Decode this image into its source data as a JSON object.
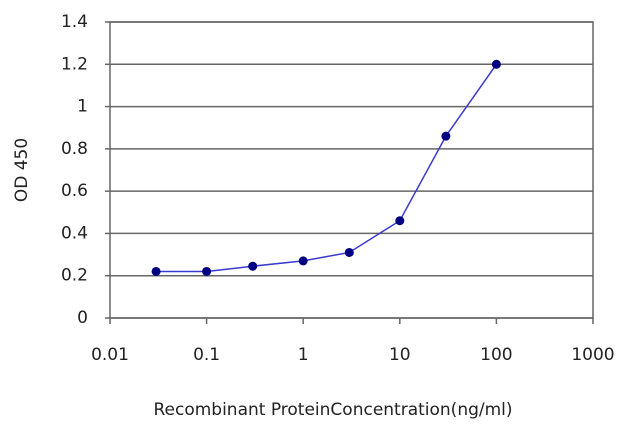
{
  "chart_data": {
    "type": "line",
    "x_label": "Recombinant ProteinConcentration(ng/ml)",
    "y_label": "OD 450",
    "x": [
      0.03,
      0.1,
      0.3,
      1,
      3,
      10,
      30,
      100
    ],
    "values": [
      0.22,
      0.22,
      0.245,
      0.27,
      0.31,
      0.46,
      0.86,
      1.2
    ],
    "line_color": "#3a3ad0",
    "marker_color": "#000080",
    "xscale": "log",
    "xlim": [
      0.01,
      1000
    ],
    "xticks": [
      0.01,
      0.1,
      1,
      10,
      100,
      1000
    ],
    "ylim": [
      0,
      1.4
    ],
    "yticks": [
      0,
      0.2,
      0.4,
      0.6,
      0.8,
      1,
      1.2,
      1.4
    ],
    "grid": true
  }
}
